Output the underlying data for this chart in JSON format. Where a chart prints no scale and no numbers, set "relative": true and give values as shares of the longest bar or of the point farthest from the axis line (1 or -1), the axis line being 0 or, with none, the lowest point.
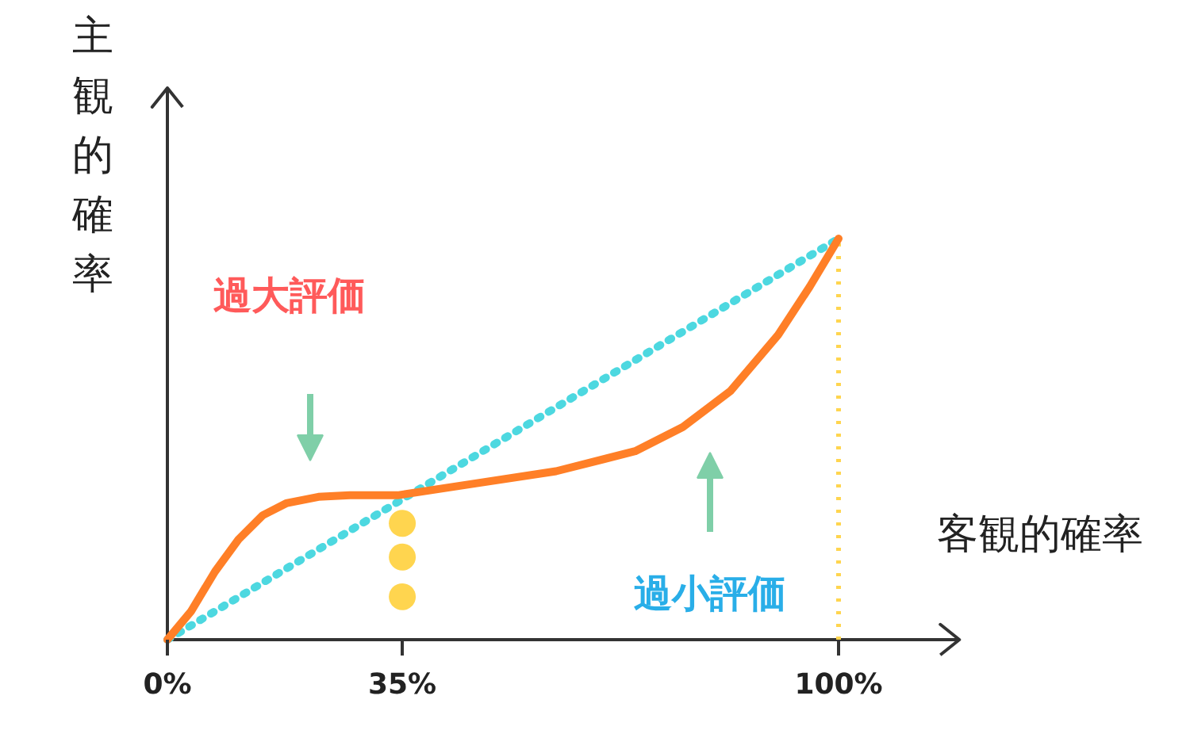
{
  "chart_data": {
    "type": "line",
    "xlabel": "客観的確率",
    "ylabel": "主観的確率",
    "relative": true,
    "grid": false,
    "tick_labels": "x",
    "xlim": [
      0,
      118
    ],
    "xticks": [
      {
        "value": 0,
        "label": "0%"
      },
      {
        "value": 35,
        "label": "35%"
      },
      {
        "value": 100,
        "label": "100%"
      }
    ],
    "series": [
      {
        "color": "#4dd8e0",
        "line_style": "dotted",
        "marker": "none",
        "x": [
          0,
          100
        ],
        "values": [
          0,
          1
        ]
      },
      {
        "color": "#ff7f27",
        "line_style": "solid",
        "marker": "none",
        "x": [
          0,
          3.5,
          7.1,
          10.6,
          14.2,
          17.7,
          22.5,
          27.2,
          34.3,
          46.1,
          57.9,
          69.7,
          76.8,
          83.9,
          91,
          95.7,
          100
        ],
        "values": [
          0,
          0.07,
          0.17,
          0.25,
          0.31,
          0.34,
          0.356,
          0.36,
          0.36,
          0.39,
          0.42,
          0.47,
          0.53,
          0.62,
          0.76,
          0.88,
          1
        ]
      },
      {
        "type": "scatter",
        "color": "#ffd54f",
        "marker": "circle",
        "x": [
          35,
          35,
          35
        ],
        "values": [
          0.29,
          0.206,
          0.107
        ]
      }
    ],
    "ref_lines": [
      {
        "axis": "x",
        "value": 100,
        "label": null,
        "color": "#ffd54f",
        "line_style": "dotted"
      }
    ],
    "annotations": [
      "過大評価",
      "過小評価"
    ]
  }
}
